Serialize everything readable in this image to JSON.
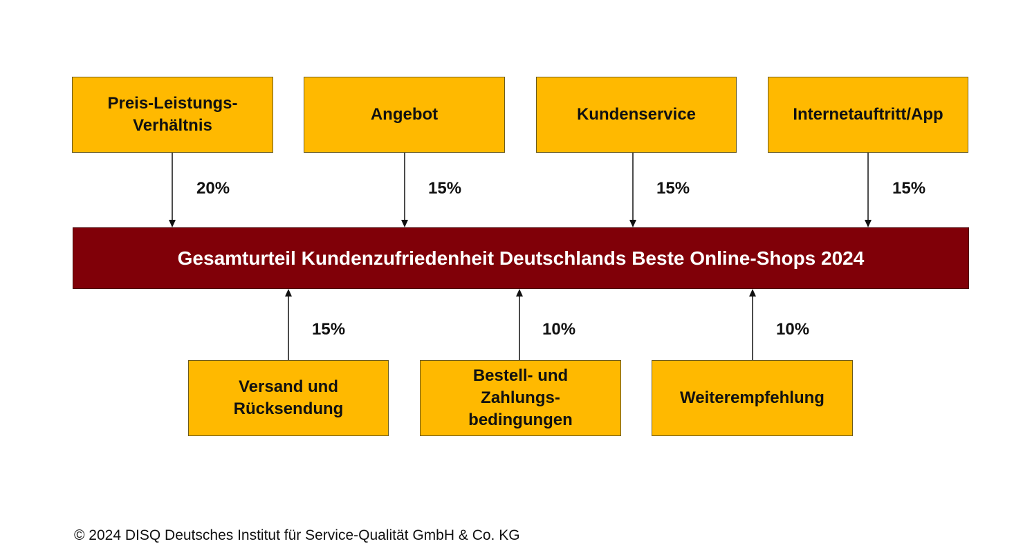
{
  "top_factors": [
    {
      "lines": [
        "Preis-Leistungs-",
        "Verhältnis"
      ],
      "weight": "20%"
    },
    {
      "lines": [
        "Angebot"
      ],
      "weight": "15%"
    },
    {
      "lines": [
        "Kundenservice"
      ],
      "weight": "15%"
    },
    {
      "lines": [
        "Internetauftritt/App"
      ],
      "weight": "15%"
    }
  ],
  "central": {
    "title": "Gesamturteil Kundenzufriedenheit Deutschlands Beste Online-Shops 2024"
  },
  "bottom_factors": [
    {
      "lines": [
        "Versand und",
        "Rücksendung"
      ],
      "weight": "15%"
    },
    {
      "lines": [
        "Bestell- und",
        "Zahlungs-",
        "bedingungen"
      ],
      "weight": "10%"
    },
    {
      "lines": [
        "Weiterempfehlung"
      ],
      "weight": "10%"
    }
  ],
  "footer": {
    "copyright": "© 2024 DISQ Deutsches Institut für Service-Qualität GmbH & Co. KG"
  },
  "colors": {
    "factor_box": "#FFB900",
    "central_box": "#800008",
    "central_text": "#FFFFFF"
  }
}
